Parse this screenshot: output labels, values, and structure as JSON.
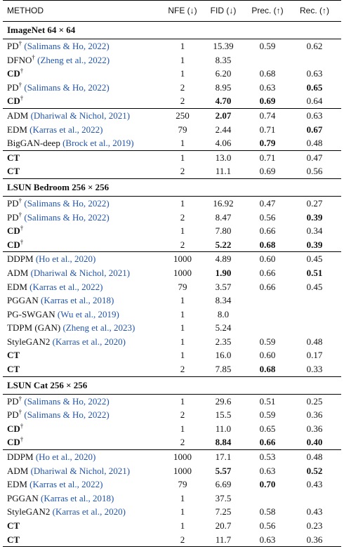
{
  "header": {
    "method": "METHOD",
    "nfe": "NFE (↓)",
    "fid": "FID (↓)",
    "prec": "Prec. (↑)",
    "rec": "Rec. (↑)"
  },
  "sections": [
    {
      "title": "ImageNet 64 × 64",
      "rows": [
        {
          "method": "PD",
          "sup": "†",
          "cite": "(Salimans & Ho, 2022)",
          "nfe": "1",
          "fid": "15.39",
          "prec": "0.59",
          "rec": "0.62",
          "bold_method": false
        },
        {
          "method": "DFNO",
          "sup": "†",
          "cite": "(Zheng et al., 2022)",
          "nfe": "1",
          "fid": "8.35",
          "prec": "",
          "rec": "",
          "bold_method": false
        },
        {
          "method": "CD",
          "sup": "†",
          "cite": "",
          "nfe": "1",
          "fid": "6.20",
          "prec": "0.68",
          "rec": "0.63",
          "bold_method": true
        },
        {
          "method": "PD",
          "sup": "†",
          "cite": "(Salimans & Ho, 2022)",
          "nfe": "2",
          "fid": "8.95",
          "prec": "0.63",
          "rec": "0.65",
          "bold_method": false,
          "bold": [
            "rec"
          ]
        },
        {
          "method": "CD",
          "sup": "†",
          "cite": "",
          "nfe": "2",
          "fid": "4.70",
          "prec": "0.69",
          "rec": "0.64",
          "bold_method": true,
          "bold": [
            "fid",
            "prec"
          ]
        },
        {
          "method": "ADM",
          "sup": "",
          "cite": "(Dhariwal & Nichol, 2021)",
          "nfe": "250",
          "fid": "2.07",
          "prec": "0.74",
          "rec": "0.63",
          "bold_method": false,
          "bold": [
            "fid"
          ],
          "sep": true
        },
        {
          "method": "EDM",
          "sup": "",
          "cite": "(Karras et al., 2022)",
          "nfe": "79",
          "fid": "2.44",
          "prec": "0.71",
          "rec": "0.67",
          "bold_method": false,
          "bold": [
            "rec"
          ]
        },
        {
          "method": "BigGAN-deep",
          "sup": "",
          "cite": "(Brock et al., 2019)",
          "nfe": "1",
          "fid": "4.06",
          "prec": "0.79",
          "rec": "0.48",
          "bold_method": false,
          "bold": [
            "prec"
          ]
        },
        {
          "method": "CT",
          "sup": "",
          "cite": "",
          "nfe": "1",
          "fid": "13.0",
          "prec": "0.71",
          "rec": "0.47",
          "bold_method": true,
          "sep": true
        },
        {
          "method": "CT",
          "sup": "",
          "cite": "",
          "nfe": "2",
          "fid": "11.1",
          "prec": "0.69",
          "rec": "0.56",
          "bold_method": true
        }
      ]
    },
    {
      "title": "LSUN Bedroom 256 × 256",
      "rows": [
        {
          "method": "PD",
          "sup": "†",
          "cite": "(Salimans & Ho, 2022)",
          "nfe": "1",
          "fid": "16.92",
          "prec": "0.47",
          "rec": "0.27",
          "bold_method": false
        },
        {
          "method": "PD",
          "sup": "†",
          "cite": "(Salimans & Ho, 2022)",
          "nfe": "2",
          "fid": "8.47",
          "prec": "0.56",
          "rec": "0.39",
          "bold_method": false,
          "bold": [
            "rec"
          ]
        },
        {
          "method": "CD",
          "sup": "†",
          "cite": "",
          "nfe": "1",
          "fid": "7.80",
          "prec": "0.66",
          "rec": "0.34",
          "bold_method": true
        },
        {
          "method": "CD",
          "sup": "†",
          "cite": "",
          "nfe": "2",
          "fid": "5.22",
          "prec": "0.68",
          "rec": "0.39",
          "bold_method": true,
          "bold": [
            "fid",
            "prec",
            "rec"
          ]
        },
        {
          "method": "DDPM",
          "sup": "",
          "cite": "(Ho et al., 2020)",
          "nfe": "1000",
          "fid": "4.89",
          "prec": "0.60",
          "rec": "0.45",
          "bold_method": false,
          "sep": true
        },
        {
          "method": "ADM",
          "sup": "",
          "cite": "(Dhariwal & Nichol, 2021)",
          "nfe": "1000",
          "fid": "1.90",
          "prec": "0.66",
          "rec": "0.51",
          "bold_method": false,
          "bold": [
            "fid",
            "rec"
          ]
        },
        {
          "method": "EDM",
          "sup": "",
          "cite": "(Karras et al., 2022)",
          "nfe": "79",
          "fid": "3.57",
          "prec": "0.66",
          "rec": "0.45",
          "bold_method": false
        },
        {
          "method": "PGGAN",
          "sup": "",
          "cite": "(Karras et al., 2018)",
          "nfe": "1",
          "fid": "8.34",
          "prec": "",
          "rec": "",
          "bold_method": false
        },
        {
          "method": "PG-SWGAN",
          "sup": "",
          "cite": "(Wu et al., 2019)",
          "nfe": "1",
          "fid": "8.0",
          "prec": "",
          "rec": "",
          "bold_method": false
        },
        {
          "method": "TDPM (GAN)",
          "sup": "",
          "cite": "(Zheng et al., 2023)",
          "nfe": "1",
          "fid": "5.24",
          "prec": "",
          "rec": "",
          "bold_method": false
        },
        {
          "method": "StyleGAN2",
          "sup": "",
          "cite": "(Karras et al., 2020)",
          "nfe": "1",
          "fid": "2.35",
          "prec": "0.59",
          "rec": "0.48",
          "bold_method": false
        },
        {
          "method": "CT",
          "sup": "",
          "cite": "",
          "nfe": "1",
          "fid": "16.0",
          "prec": "0.60",
          "rec": "0.17",
          "bold_method": true
        },
        {
          "method": "CT",
          "sup": "",
          "cite": "",
          "nfe": "2",
          "fid": "7.85",
          "prec": "0.68",
          "rec": "0.33",
          "bold_method": true,
          "bold": [
            "prec"
          ]
        }
      ]
    },
    {
      "title": "LSUN Cat 256 × 256",
      "rows": [
        {
          "method": "PD",
          "sup": "†",
          "cite": "(Salimans & Ho, 2022)",
          "nfe": "1",
          "fid": "29.6",
          "prec": "0.51",
          "rec": "0.25",
          "bold_method": false
        },
        {
          "method": "PD",
          "sup": "†",
          "cite": "(Salimans & Ho, 2022)",
          "nfe": "2",
          "fid": "15.5",
          "prec": "0.59",
          "rec": "0.36",
          "bold_method": false
        },
        {
          "method": "CD",
          "sup": "†",
          "cite": "",
          "nfe": "1",
          "fid": "11.0",
          "prec": "0.65",
          "rec": "0.36",
          "bold_method": true
        },
        {
          "method": "CD",
          "sup": "†",
          "cite": "",
          "nfe": "2",
          "fid": "8.84",
          "prec": "0.66",
          "rec": "0.40",
          "bold_method": true,
          "bold": [
            "fid",
            "prec",
            "rec"
          ]
        },
        {
          "method": "DDPM",
          "sup": "",
          "cite": "(Ho et al., 2020)",
          "nfe": "1000",
          "fid": "17.1",
          "prec": "0.53",
          "rec": "0.48",
          "bold_method": false,
          "sep": true
        },
        {
          "method": "ADM",
          "sup": "",
          "cite": "(Dhariwal & Nichol, 2021)",
          "nfe": "1000",
          "fid": "5.57",
          "prec": "0.63",
          "rec": "0.52",
          "bold_method": false,
          "bold": [
            "fid",
            "rec"
          ]
        },
        {
          "method": "EDM",
          "sup": "",
          "cite": "(Karras et al., 2022)",
          "nfe": "79",
          "fid": "6.69",
          "prec": "0.70",
          "rec": "0.43",
          "bold_method": false,
          "bold": [
            "prec"
          ]
        },
        {
          "method": "PGGAN",
          "sup": "",
          "cite": "(Karras et al., 2018)",
          "nfe": "1",
          "fid": "37.5",
          "prec": "",
          "rec": "",
          "bold_method": false
        },
        {
          "method": "StyleGAN2",
          "sup": "",
          "cite": "(Karras et al., 2020)",
          "nfe": "1",
          "fid": "7.25",
          "prec": "0.58",
          "rec": "0.43",
          "bold_method": false
        },
        {
          "method": "CT",
          "sup": "",
          "cite": "",
          "nfe": "1",
          "fid": "20.7",
          "prec": "0.56",
          "rec": "0.23",
          "bold_method": true
        },
        {
          "method": "CT",
          "sup": "",
          "cite": "",
          "nfe": "2",
          "fid": "11.7",
          "prec": "0.63",
          "rec": "0.36",
          "bold_method": true
        }
      ]
    }
  ]
}
